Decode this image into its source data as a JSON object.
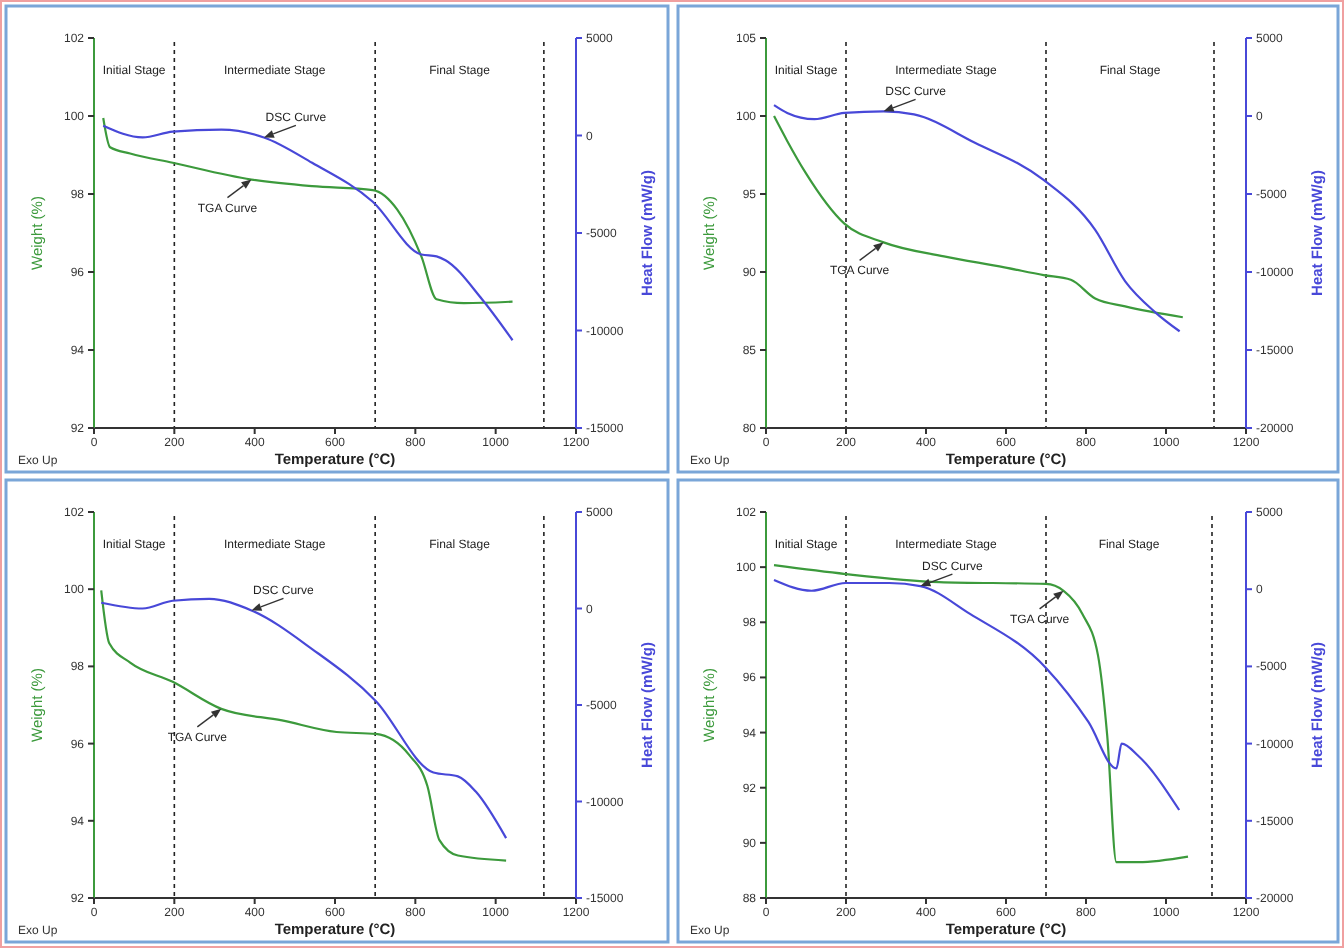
{
  "chart_data": [
    {
      "type": "line",
      "xlabel": "Temperature (°C)",
      "ylabel": "Weight (%)",
      "y2label": "Heat Flow (mW/g)",
      "xlim": [
        0,
        1200
      ],
      "xticks": [
        0,
        200,
        400,
        600,
        800,
        1000,
        1200
      ],
      "ylim": [
        92,
        102
      ],
      "yticks": [
        92,
        94,
        96,
        98,
        100,
        102
      ],
      "y2lim": [
        -15000,
        5000
      ],
      "y2ticks": [
        -15000,
        -10000,
        -5000,
        0,
        5000
      ],
      "ref_lines": [
        {
          "axis": "x",
          "value": 200,
          "line_style": "dashed"
        },
        {
          "axis": "x",
          "value": 700,
          "line_style": "dashed"
        },
        {
          "axis": "x",
          "value": 1120,
          "line_style": "dashed"
        }
      ],
      "series": [
        {
          "name": "TGA Curve",
          "color": "#3c9a3c",
          "x": [
            23,
            40,
            90,
            196,
            392,
            543,
            694,
            755,
            815,
            853,
            921,
            1042
          ],
          "values": [
            99.95,
            99.2,
            99.04,
            98.8,
            98.37,
            98.2,
            98.1,
            97.6,
            96.4,
            95.3,
            95.2,
            95.24
          ]
        },
        {
          "name": "DSC Curve",
          "color": "#4848d8",
          "axis": "y2",
          "x": [
            23,
            121,
            196,
            317,
            423,
            543,
            694,
            815,
            853,
            875,
            966,
            1042
          ],
          "values": [
            500,
            -100,
            200,
            300,
            -100,
            -1400,
            -3400,
            -6100,
            -6200,
            -6400,
            -8400,
            -10500
          ]
        }
      ],
      "annotations": [
        "Initial Stage",
        "Intermediate Stage",
        "Final Stage",
        "Exo Up"
      ]
    },
    {
      "type": "line",
      "xlabel": "Temperature (°C)",
      "ylabel": "Weight (%)",
      "y2label": "Heat Flow (mW/g)",
      "xlim": [
        0,
        1200
      ],
      "xticks": [
        0,
        200,
        400,
        600,
        800,
        1000,
        1200
      ],
      "ylim": [
        80,
        105
      ],
      "yticks": [
        80,
        85,
        90,
        95,
        100,
        105
      ],
      "y2lim": [
        -20000,
        5000
      ],
      "y2ticks": [
        -20000,
        -15000,
        -10000,
        -5000,
        0,
        5000
      ],
      "ref_lines": [
        {
          "axis": "x",
          "value": 200,
          "line_style": "dashed"
        },
        {
          "axis": "x",
          "value": 700,
          "line_style": "dashed"
        },
        {
          "axis": "x",
          "value": 1120,
          "line_style": "dashed"
        }
      ],
      "series": [
        {
          "name": "TGA Curve",
          "color": "#3c9a3c",
          "x": [
            20,
            53,
            98,
            196,
            294,
            445,
            596,
            694,
            762,
            823,
            898,
            1042
          ],
          "values": [
            100,
            98.4,
            96.4,
            93.1,
            91.9,
            91.0,
            90.3,
            89.8,
            89.5,
            88.3,
            87.8,
            87.1
          ]
        },
        {
          "name": "DSC Curve",
          "color": "#4848d8",
          "axis": "y2",
          "x": [
            20,
            53,
            121,
            196,
            294,
            370,
            521,
            694,
            823,
            898,
            974,
            1034
          ],
          "values": [
            700,
            200,
            -200,
            200,
            300,
            100,
            -1700,
            -4100,
            -7300,
            -10600,
            -12600,
            -13800
          ]
        }
      ],
      "annotations": [
        "Initial Stage",
        "Intermediate Stage",
        "Final Stage",
        "Exo Up"
      ]
    },
    {
      "type": "line",
      "xlabel": "Temperature (°C)",
      "ylabel": "Weight (%)",
      "y2label": "Heat Flow (mW/g)",
      "xlim": [
        0,
        1200
      ],
      "xticks": [
        0,
        200,
        400,
        600,
        800,
        1000,
        1200
      ],
      "ylim": [
        92,
        102
      ],
      "yticks": [
        92,
        94,
        96,
        98,
        100,
        102
      ],
      "y2lim": [
        -15000,
        5000
      ],
      "y2ticks": [
        -15000,
        -10000,
        -5000,
        0,
        5000
      ],
      "ref_lines": [
        {
          "axis": "x",
          "value": 200,
          "line_style": "dashed"
        },
        {
          "axis": "x",
          "value": 700,
          "line_style": "dashed"
        },
        {
          "axis": "x",
          "value": 1120,
          "line_style": "dashed"
        }
      ],
      "series": [
        {
          "name": "TGA Curve",
          "color": "#3c9a3c",
          "x": [
            18,
            38,
            90,
            196,
            317,
            468,
            604,
            702,
            785,
            830,
            860,
            906,
            1026
          ],
          "values": [
            99.97,
            98.6,
            98.1,
            97.6,
            96.9,
            96.6,
            96.3,
            96.25,
            95.7,
            94.9,
            93.5,
            93.1,
            92.97
          ]
        },
        {
          "name": "DSC Curve",
          "color": "#4848d8",
          "axis": "y2",
          "x": [
            18,
            121,
            196,
            287,
            392,
            543,
            702,
            845,
            906,
            951,
            1026
          ],
          "values": [
            300,
            0,
            400,
            500,
            -100,
            -2100,
            -4800,
            -8500,
            -8700,
            -9500,
            -11900
          ]
        }
      ],
      "annotations": [
        "Initial Stage",
        "Intermediate Stage",
        "Final Stage",
        "Exo Up"
      ]
    },
    {
      "type": "line",
      "xlabel": "Temperature (°C)",
      "ylabel": "Weight (%)",
      "y2label": "Heat Flow (mW/g)",
      "xlim": [
        0,
        1200
      ],
      "xticks": [
        0,
        200,
        400,
        600,
        800,
        1000,
        1200
      ],
      "ylim": [
        88,
        102
      ],
      "yticks": [
        88,
        90,
        92,
        94,
        96,
        98,
        100,
        102
      ],
      "y2lim": [
        -20000,
        5000
      ],
      "y2ticks": [
        -20000,
        -15000,
        -10000,
        -5000,
        0,
        5000
      ],
      "ref_lines": [
        {
          "axis": "x",
          "value": 200,
          "line_style": "dashed"
        },
        {
          "axis": "x",
          "value": 700,
          "line_style": "dashed"
        },
        {
          "axis": "x",
          "value": 1115,
          "line_style": "dashed"
        }
      ],
      "series": [
        {
          "name": "TGA Curve",
          "color": "#3c9a3c",
          "x": [
            20,
            199,
            433,
            700,
            744,
            791,
            830,
            853,
            876,
            931,
            1055
          ],
          "values": [
            100.07,
            99.75,
            99.46,
            99.39,
            99.14,
            98.3,
            96.8,
            93.9,
            89.3,
            89.3,
            89.5
          ]
        },
        {
          "name": "DSC Curve",
          "color": "#4848d8",
          "axis": "y2",
          "x": [
            20,
            114,
            199,
            308,
            386,
            510,
            700,
            806,
            876,
            889,
            931,
            1033
          ],
          "values": [
            600,
            -100,
            400,
            400,
            200,
            -1600,
            -5100,
            -8600,
            -11600,
            -10000,
            -10800,
            -14300
          ]
        }
      ],
      "annotations": [
        "Initial Stage",
        "Intermediate Stage",
        "Final Stage",
        "Exo Up"
      ]
    }
  ]
}
